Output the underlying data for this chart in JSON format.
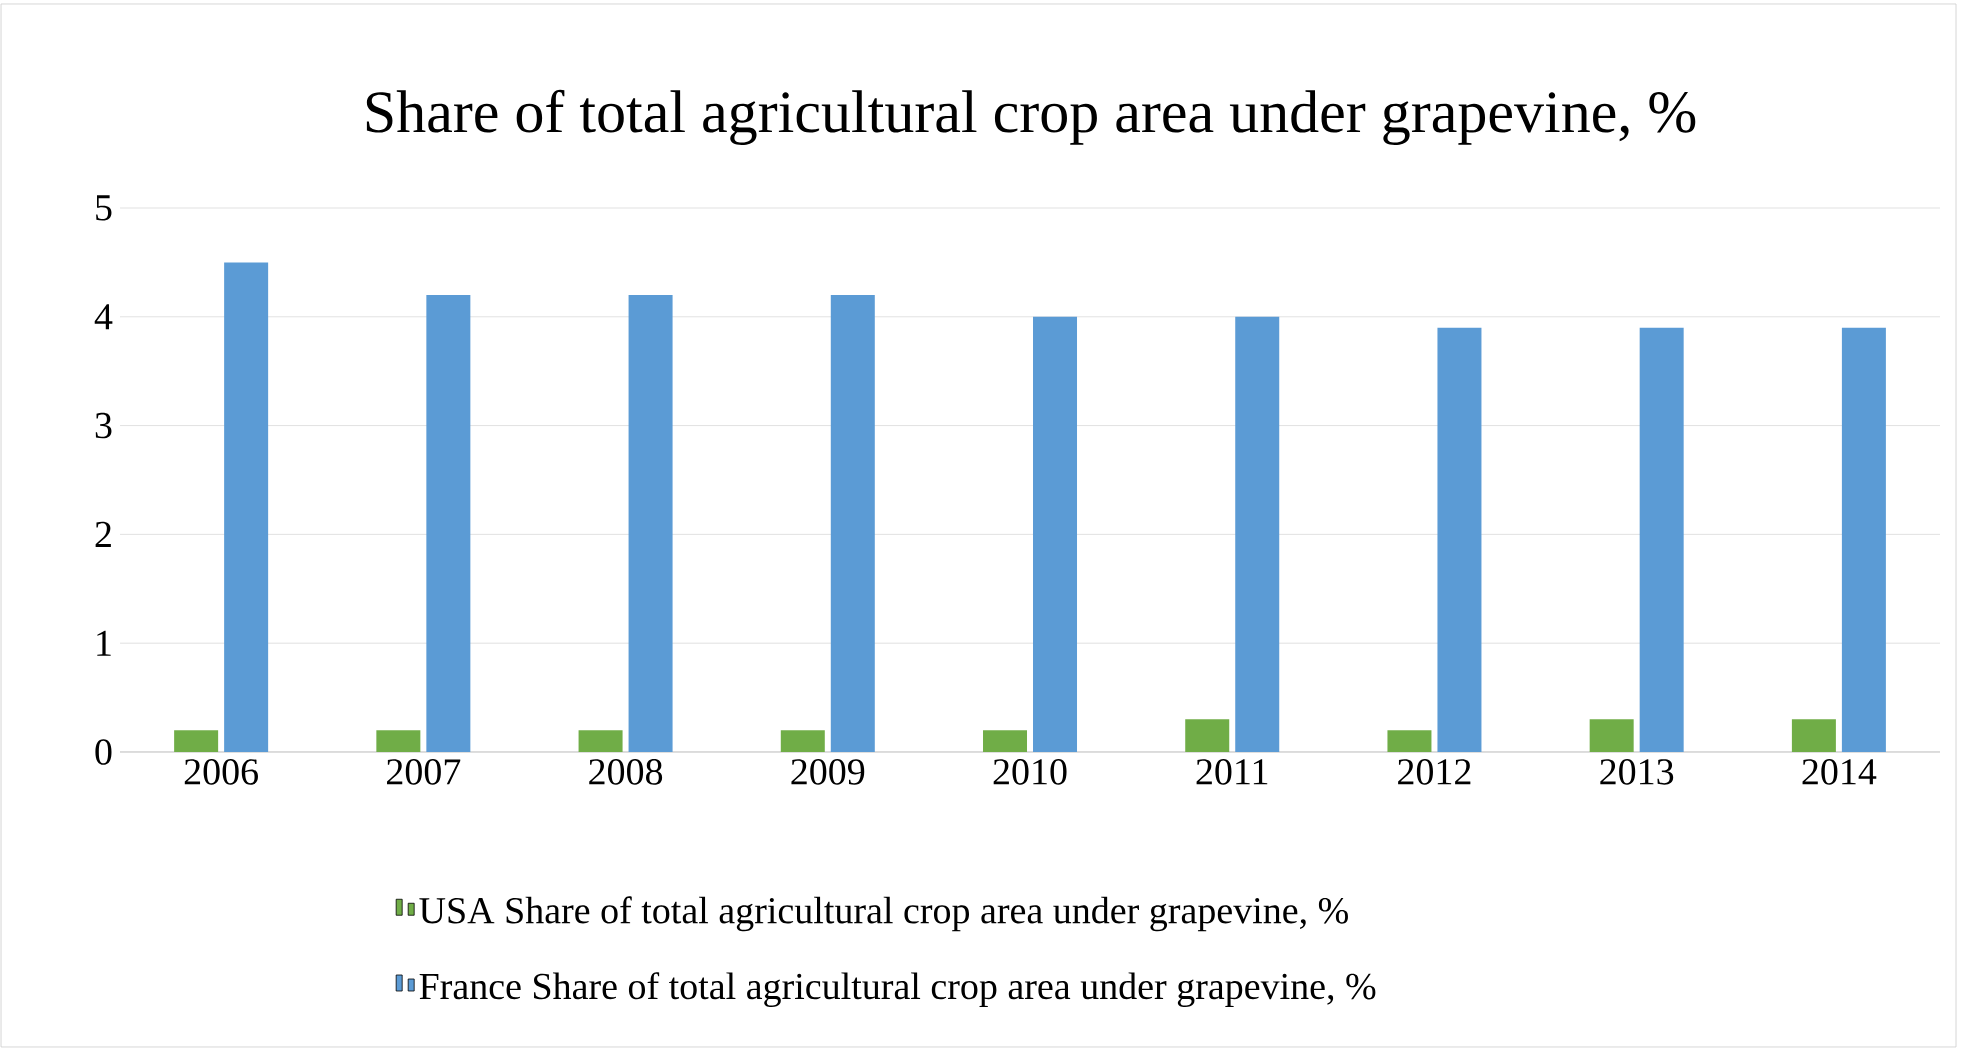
{
  "chart_data": {
    "type": "bar",
    "title": "Share of total agricultural crop area under grapevine, %",
    "categories": [
      "2006",
      "2007",
      "2008",
      "2009",
      "2010",
      "2011",
      "2012",
      "2013",
      "2014"
    ],
    "series": [
      {
        "name": "USA Share of total agricultural crop area under grapevine, %",
        "color": "#70ad47",
        "values": [
          0.2,
          0.2,
          0.2,
          0.2,
          0.2,
          0.3,
          0.2,
          0.3,
          0.3
        ]
      },
      {
        "name": "France Share of total agricultural crop area under grapevine, %",
        "color": "#5b9bd5",
        "values": [
          4.5,
          4.2,
          4.2,
          4.2,
          4.0,
          4.0,
          3.9,
          3.9,
          3.9
        ]
      }
    ],
    "ylim": [
      0,
      5
    ],
    "yticks": [
      0,
      1,
      2,
      3,
      4,
      5
    ],
    "grid": "y",
    "legend": "bottom"
  }
}
